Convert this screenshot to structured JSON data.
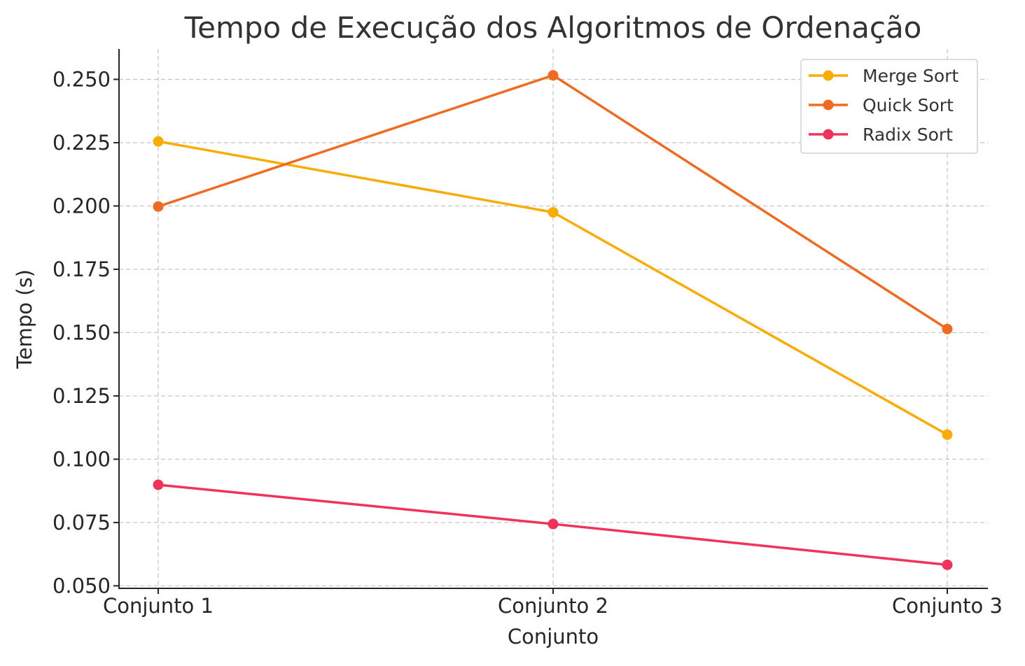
{
  "chart_data": {
    "type": "line",
    "title": "Tempo de Execução dos Algoritmos de Ordenação",
    "xlabel": "Conjunto",
    "ylabel": "Tempo (s)",
    "categories": [
      "Conjunto 1",
      "Conjunto 2",
      "Conjunto 3"
    ],
    "ylim": [
      0.049,
      0.262
    ],
    "yticks": [
      0.05,
      0.075,
      0.1,
      0.125,
      0.15,
      0.175,
      0.2,
      0.225,
      0.25
    ],
    "ytick_labels": [
      "0.050",
      "0.075",
      "0.100",
      "0.125",
      "0.150",
      "0.175",
      "0.200",
      "0.225",
      "0.250"
    ],
    "grid": true,
    "legend_position": "top-right",
    "series": [
      {
        "name": "Merge Sort",
        "color": "#f8ac05",
        "values": [
          0.2255,
          0.1975,
          0.1097
        ]
      },
      {
        "name": "Quick Sort",
        "color": "#ee6b23",
        "values": [
          0.1998,
          0.2516,
          0.1514
        ]
      },
      {
        "name": "Radix Sort",
        "color": "#ef335b",
        "values": [
          0.0899,
          0.0744,
          0.0583
        ]
      }
    ]
  }
}
